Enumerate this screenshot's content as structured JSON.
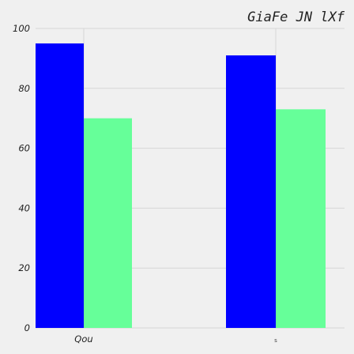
{
  "chart_data": {
    "type": "bar",
    "title": "GiaFe JN  lXf",
    "xlabel": "",
    "ylabel": "",
    "categories": [
      "Qou",
      "s"
    ],
    "series": [
      {
        "color": "#0000ff",
        "values": [
          95,
          91
        ]
      },
      {
        "color": "#66ff99",
        "values": [
          70,
          73
        ]
      }
    ],
    "ylim": [
      0,
      100
    ],
    "yticks": [
      0,
      20,
      40,
      60,
      80,
      100
    ],
    "grid": true,
    "legend": "none"
  }
}
